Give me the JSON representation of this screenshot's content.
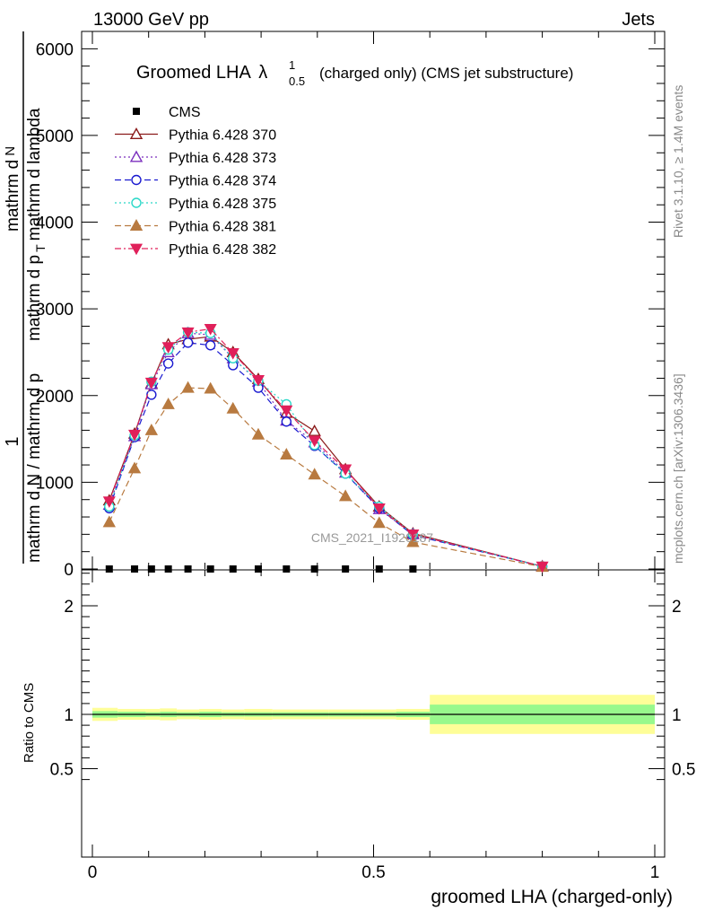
{
  "header": {
    "left": "13000 GeV pp",
    "right": "Jets"
  },
  "side": {
    "rivet": "Rivet 3.1.10, ≥ 1.4M events",
    "mcplots": "mcplots.cern.ch [arXiv:1306.3436]"
  },
  "chart_data": {
    "type": "line",
    "title": "Groomed LHA",
    "title_symbol": "λ",
    "title_sup": "1",
    "title_sub": "0.5",
    "title_suffix": "(charged only) (CMS jet substructure)",
    "watermark": "CMS_2021_I1920187",
    "ylabel_main": "mathrm d N / mathrm d p",
    "ylabel_main_num": "1",
    "ylabel_top": "mathrm d",
    "ylabel_top2": "N",
    "ylabel_top_line2": "mathrm d p",
    "ylabel_top_line2b": "mathrm d lambda",
    "ylabel_top_sub": "T",
    "ylabel_ratio": "Ratio to CMS",
    "xlabel": "groomed LHA (charged-only)",
    "xlim": [
      0,
      1
    ],
    "ylim_main": [
      0,
      6200
    ],
    "ylim_ratio": [
      0.4,
      2.3
    ],
    "x_ticks": [
      "0",
      "0.5",
      "1"
    ],
    "y_ticks_main": [
      "0",
      "1000",
      "2000",
      "3000",
      "4000",
      "5000",
      "6000"
    ],
    "y_ticks_ratio": [
      "0.5",
      "1",
      "2"
    ],
    "x": [
      0.03,
      0.075,
      0.105,
      0.135,
      0.17,
      0.21,
      0.25,
      0.295,
      0.345,
      0.395,
      0.45,
      0.51,
      0.57,
      0.8
    ],
    "series": [
      {
        "name": "CMS",
        "color": "#000000",
        "marker": "square-filled",
        "values": [
          0,
          0,
          0,
          0,
          0,
          0,
          0,
          0,
          0,
          0,
          0,
          0,
          0,
          0
        ],
        "marker_x": [
          0.03,
          0.075,
          0.105,
          0.135,
          0.17,
          0.21,
          0.25,
          0.295,
          0.345,
          0.395,
          0.45,
          0.51,
          0.57
        ]
      },
      {
        "name": "Pythia 6.428 370",
        "color": "#8b1a1a",
        "marker": "triangle-open",
        "dash": "",
        "values": [
          790,
          1560,
          2140,
          2590,
          2650,
          2680,
          2500,
          2190,
          1800,
          1590,
          1150,
          720,
          410,
          30
        ]
      },
      {
        "name": "Pythia 6.428 373",
        "color": "#7b2fbe",
        "marker": "triangle-open",
        "dash": "2,3",
        "values": [
          740,
          1530,
          2130,
          2500,
          2720,
          2700,
          2430,
          2160,
          1710,
          1460,
          1110,
          690,
          400,
          30
        ]
      },
      {
        "name": "Pythia 6.428 374",
        "color": "#1a1ad0",
        "marker": "circle-open",
        "dash": "7,4",
        "values": [
          700,
          1520,
          2010,
          2370,
          2610,
          2580,
          2350,
          2090,
          1700,
          1420,
          1100,
          700,
          390,
          30
        ]
      },
      {
        "name": "Pythia 6.428 375",
        "color": "#2ad8c8",
        "marker": "circle-open",
        "dash": "2,3",
        "values": [
          720,
          1540,
          2160,
          2530,
          2730,
          2720,
          2430,
          2170,
          1900,
          1430,
          1100,
          720,
          400,
          30
        ]
      },
      {
        "name": "Pythia 6.428 381",
        "color": "#b87a40",
        "marker": "triangle-filled",
        "dash": "7,4",
        "values": [
          540,
          1160,
          1600,
          1900,
          2090,
          2080,
          1850,
          1550,
          1320,
          1090,
          840,
          530,
          310,
          25
        ]
      },
      {
        "name": "Pythia 6.428 382",
        "color": "#e0205a",
        "marker": "triangle-down-filled",
        "dash": "7,3,2,3",
        "values": [
          780,
          1550,
          2150,
          2560,
          2730,
          2770,
          2490,
          2180,
          1830,
          1480,
          1150,
          700,
          400,
          30
        ]
      }
    ],
    "ratio_bands": {
      "edges": [
        0,
        0.045,
        0.095,
        0.12,
        0.15,
        0.19,
        0.23,
        0.27,
        0.32,
        0.37,
        0.42,
        0.48,
        0.54,
        0.6,
        1.0
      ],
      "inner": [
        0.03,
        0.025,
        0.02,
        0.025,
        0.02,
        0.025,
        0.02,
        0.02,
        0.02,
        0.02,
        0.02,
        0.02,
        0.025,
        0.09
      ],
      "outer": [
        0.06,
        0.05,
        0.05,
        0.055,
        0.045,
        0.05,
        0.045,
        0.05,
        0.045,
        0.045,
        0.045,
        0.045,
        0.05,
        0.18
      ],
      "inner_color": "#98f98c",
      "outer_color": "#fefe98"
    }
  }
}
